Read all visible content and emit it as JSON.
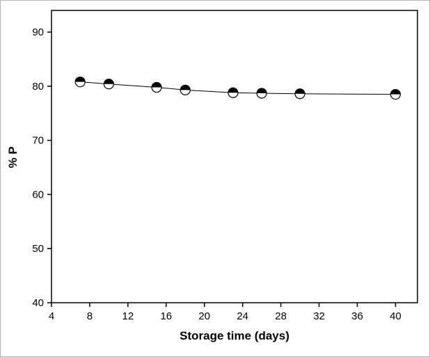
{
  "chart_data": {
    "type": "line",
    "title": "",
    "xlabel": "Storage time (days)",
    "ylabel": "% P",
    "x": [
      7,
      10,
      15,
      18,
      23,
      26,
      30,
      40
    ],
    "y": [
      80.8,
      80.4,
      79.8,
      79.3,
      78.8,
      78.7,
      78.6,
      78.5
    ],
    "xlim": [
      4,
      42.3
    ],
    "ylim": [
      40,
      94
    ],
    "xticks": [
      4,
      8,
      12,
      16,
      20,
      24,
      28,
      32,
      36,
      40
    ],
    "yticks": [
      40,
      50,
      60,
      70,
      80,
      90
    ],
    "grid": false,
    "legend": "none",
    "marker": "half-filled-circle",
    "line_color": "#000000",
    "axis_color": "#000000",
    "marker_fill_top": "#000000",
    "marker_fill_bottom": "#ffffff"
  }
}
